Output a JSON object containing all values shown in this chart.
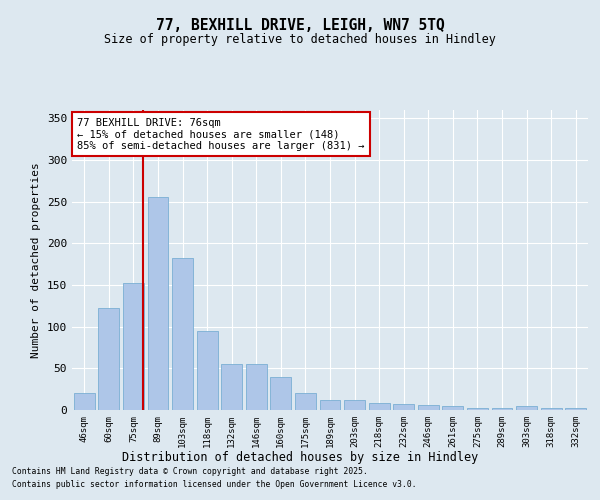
{
  "title1": "77, BEXHILL DRIVE, LEIGH, WN7 5TQ",
  "title2": "Size of property relative to detached houses in Hindley",
  "xlabel": "Distribution of detached houses by size in Hindley",
  "ylabel": "Number of detached properties",
  "categories": [
    "46sqm",
    "60sqm",
    "75sqm",
    "89sqm",
    "103sqm",
    "118sqm",
    "132sqm",
    "146sqm",
    "160sqm",
    "175sqm",
    "189sqm",
    "203sqm",
    "218sqm",
    "232sqm",
    "246sqm",
    "261sqm",
    "275sqm",
    "289sqm",
    "303sqm",
    "318sqm",
    "332sqm"
  ],
  "values": [
    20,
    122,
    153,
    256,
    182,
    95,
    55,
    55,
    40,
    20,
    12,
    12,
    8,
    7,
    6,
    5,
    3,
    3,
    5,
    2,
    2
  ],
  "bar_color": "#aec6e8",
  "bar_edgecolor": "#7aafd4",
  "bg_color": "#dde8f0",
  "grid_color": "#ffffff",
  "vline_color": "#cc0000",
  "annotation_title": "77 BEXHILL DRIVE: 76sqm",
  "annotation_line2": "← 15% of detached houses are smaller (148)",
  "annotation_line3": "85% of semi-detached houses are larger (831) →",
  "annotation_box_color": "#ffffff",
  "annotation_box_edge": "#cc0000",
  "footer1": "Contains HM Land Registry data © Crown copyright and database right 2025.",
  "footer2": "Contains public sector information licensed under the Open Government Licence v3.0.",
  "ylim": [
    0,
    360
  ],
  "yticks": [
    0,
    50,
    100,
    150,
    200,
    250,
    300,
    350
  ]
}
